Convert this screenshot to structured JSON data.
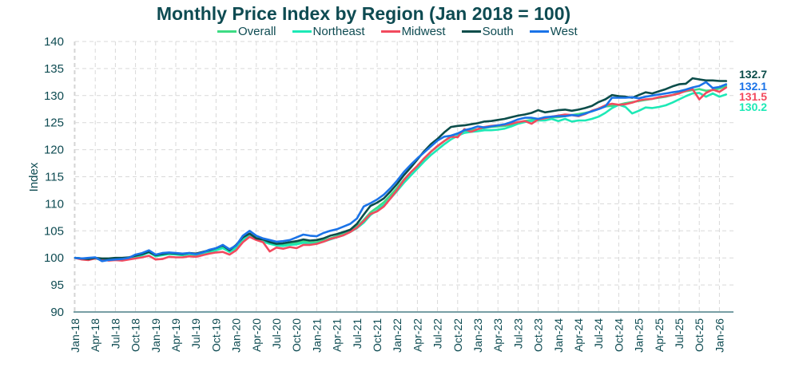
{
  "chart_data": {
    "type": "line",
    "title": "Monthly Price Index by Region (Jan 2018 = 100)",
    "xlabel": "",
    "ylabel": "Index",
    "ylim": [
      90,
      140
    ],
    "yticks": [
      90,
      95,
      100,
      105,
      110,
      115,
      120,
      125,
      130,
      135,
      140
    ],
    "xtick_labels": [
      "Jan-18",
      "Apr-18",
      "Jul-18",
      "Oct-18",
      "Jan-19",
      "Apr-19",
      "Jul-19",
      "Oct-19",
      "Jan-20",
      "Apr-20",
      "Jul-20",
      "Oct-20",
      "Jan-21",
      "Apr-21",
      "Jul-21",
      "Oct-21",
      "Jan-22",
      "Apr-22",
      "Jul-22",
      "Oct-22",
      "Jan-23",
      "Apr-23",
      "Jul-23",
      "Oct-23",
      "Jan-24",
      "Apr-24",
      "Jul-24",
      "Oct-24",
      "Jan-25",
      "Apr-25",
      "Jul-25",
      "Oct-25",
      "Jan-26"
    ],
    "grid": true,
    "legend_position": "top",
    "x_start": "Jan-18",
    "x_end": "Feb-26",
    "series": [
      {
        "name": "Overall",
        "color": "#3ddc84",
        "end_label": "",
        "values": [
          100,
          99.9,
          99.8,
          100,
          99.6,
          99.7,
          99.9,
          99.8,
          100,
          100.3,
          100.6,
          101,
          100.4,
          100.6,
          100.8,
          100.7,
          100.6,
          100.8,
          100.6,
          100.9,
          101.2,
          101.5,
          101.9,
          101.2,
          102,
          103.5,
          104.4,
          103.7,
          103.2,
          103,
          102.6,
          102.5,
          102.7,
          102.8,
          103.1,
          102.8,
          102.9,
          103.2,
          103.6,
          104,
          104.4,
          105,
          105.8,
          107,
          108.4,
          109.3,
          110.3,
          111.6,
          113,
          114.5,
          115.8,
          117,
          118.3,
          119.6,
          120.6,
          121.6,
          122.5,
          123,
          123.5,
          123.6,
          123.8,
          124,
          124.2,
          124.3,
          124.4,
          124.6,
          125,
          125.3,
          125.5,
          125.7,
          125.9,
          126,
          126,
          126.2,
          126.4,
          126.6,
          126.8,
          127.1,
          127.6,
          128,
          128.1,
          128.3,
          128.6,
          128.8,
          129,
          129.2,
          129.4,
          129.6,
          129.8,
          130.1,
          130.5,
          130.8,
          131,
          131.2,
          130.9,
          131,
          131.3,
          131.8
        ]
      },
      {
        "name": "Northeast",
        "color": "#1de9b6",
        "end_label": "130.2",
        "values": [
          100,
          99.9,
          99.8,
          99.9,
          99.6,
          99.6,
          99.8,
          99.8,
          100,
          100.2,
          100.5,
          101,
          100.3,
          100.5,
          100.7,
          100.6,
          100.5,
          100.7,
          100.5,
          100.8,
          101,
          101.4,
          101.8,
          101.1,
          101.8,
          103.3,
          104.2,
          103.6,
          103,
          102.6,
          102.3,
          102.2,
          102.4,
          102.5,
          102.8,
          102.6,
          102.7,
          103,
          103.4,
          103.8,
          104.2,
          104.8,
          105.5,
          106.5,
          107.9,
          108.8,
          109.8,
          111,
          112.4,
          113.9,
          115.2,
          116.5,
          117.8,
          119,
          120,
          121,
          121.9,
          122.6,
          123.1,
          123.3,
          123.4,
          123.6,
          123.6,
          123.7,
          123.9,
          124.3,
          124.8,
          125.1,
          125.3,
          125.4,
          125.4,
          125.7,
          125.3,
          125.7,
          125.2,
          125.4,
          125.4,
          125.7,
          126.1,
          126.8,
          127.7,
          128.3,
          127.9,
          126.7,
          127.2,
          127.8,
          127.7,
          127.9,
          128.2,
          128.7,
          129.3,
          129.9,
          130.4,
          130.5,
          129.8,
          130.4,
          129.8,
          130.2
        ]
      },
      {
        "name": "Midwest",
        "color": "#f24a5e",
        "end_label": "131.5",
        "values": [
          100,
          99.7,
          99.6,
          99.9,
          99.7,
          99.5,
          99.6,
          99.5,
          99.7,
          99.9,
          100.1,
          100.4,
          99.7,
          99.8,
          100.2,
          100.1,
          100.1,
          100.3,
          100.2,
          100.5,
          100.8,
          101,
          101.1,
          100.6,
          101.4,
          102.9,
          103.9,
          103.3,
          102.9,
          101.2,
          101.9,
          101.7,
          102,
          101.8,
          102.4,
          102.4,
          102.6,
          103,
          103.5,
          103.8,
          104.2,
          104.8,
          105.6,
          106.8,
          108.1,
          108.6,
          109.5,
          111,
          112.6,
          114.4,
          115.8,
          117,
          118.4,
          119.6,
          120.7,
          121.6,
          122.4,
          122.3,
          123.8,
          123.3,
          123.8,
          124.2,
          124.4,
          124.5,
          124.6,
          124.8,
          125.1,
          125.3,
          124.8,
          125.6,
          125.8,
          126.1,
          126.3,
          126.5,
          126.4,
          126.2,
          126.6,
          127.2,
          127.6,
          128.2,
          128.5,
          128.3,
          128.4,
          128.7,
          129.1,
          129.3,
          129.4,
          129.7,
          129.9,
          130.1,
          130.4,
          130.9,
          131.2,
          129.3,
          130.5,
          131.1,
          130.7,
          131.5
        ]
      },
      {
        "name": "South",
        "color": "#0b4d4a",
        "end_label": "132.7",
        "values": [
          100,
          99.9,
          99.8,
          100,
          99.9,
          99.9,
          100,
          100,
          100.1,
          100.4,
          100.7,
          101.1,
          100.5,
          100.7,
          100.9,
          100.8,
          100.7,
          100.9,
          100.8,
          101.1,
          101.4,
          101.8,
          102.3,
          101.4,
          102.4,
          103.8,
          104.5,
          103.6,
          103.4,
          102.9,
          102.6,
          102.7,
          102.9,
          103.1,
          103.4,
          103.2,
          103.3,
          103.6,
          104.1,
          104.4,
          104.8,
          105.2,
          106.3,
          108,
          109.6,
          110.2,
          111,
          112.3,
          113.7,
          115.3,
          116.7,
          118.2,
          119.7,
          121,
          122,
          123.2,
          124.2,
          124.4,
          124.5,
          124.7,
          124.9,
          125.2,
          125.3,
          125.5,
          125.7,
          126,
          126.3,
          126.5,
          126.8,
          127.3,
          126.9,
          127.1,
          127.3,
          127.4,
          127.2,
          127.4,
          127.7,
          128.1,
          128.8,
          129.3,
          130.1,
          129.9,
          129.8,
          129.6,
          130.1,
          130.6,
          130.4,
          130.8,
          131.2,
          131.7,
          132.1,
          132.2,
          133.2,
          133,
          132.8,
          132.8,
          132.7,
          132.7
        ]
      },
      {
        "name": "West",
        "color": "#1a73e8",
        "end_label": "132.1",
        "values": [
          100,
          99.9,
          100,
          100.1,
          99.4,
          99.6,
          99.7,
          99.8,
          100,
          100.6,
          100.9,
          101.4,
          100.6,
          100.9,
          101,
          100.9,
          100.8,
          100.9,
          100.7,
          101,
          101.5,
          101.8,
          102.4,
          101.6,
          102.3,
          104.1,
          105,
          104.1,
          103.6,
          103.3,
          103,
          103.1,
          103.3,
          103.8,
          104.3,
          104.1,
          104,
          104.6,
          105,
          105.3,
          105.8,
          106.3,
          107.3,
          109.5,
          110.1,
          110.8,
          111.7,
          112.9,
          114.3,
          115.9,
          117.2,
          118.4,
          119.5,
          120.6,
          121.7,
          122.4,
          122.6,
          123,
          123.6,
          123.9,
          124.3,
          124.1,
          124.3,
          124.5,
          124.7,
          125.1,
          125.6,
          125.9,
          125.9,
          125.7,
          126,
          126.1,
          126.2,
          126.2,
          126.4,
          126.3,
          126.7,
          127.1,
          127.5,
          128,
          129.6,
          129.6,
          129.6,
          129.7,
          129.5,
          129.8,
          130,
          130.2,
          130.4,
          130.6,
          130.8,
          131.1,
          131.5,
          131.8,
          132.5,
          131.4,
          131.6,
          132.1
        ]
      }
    ]
  }
}
